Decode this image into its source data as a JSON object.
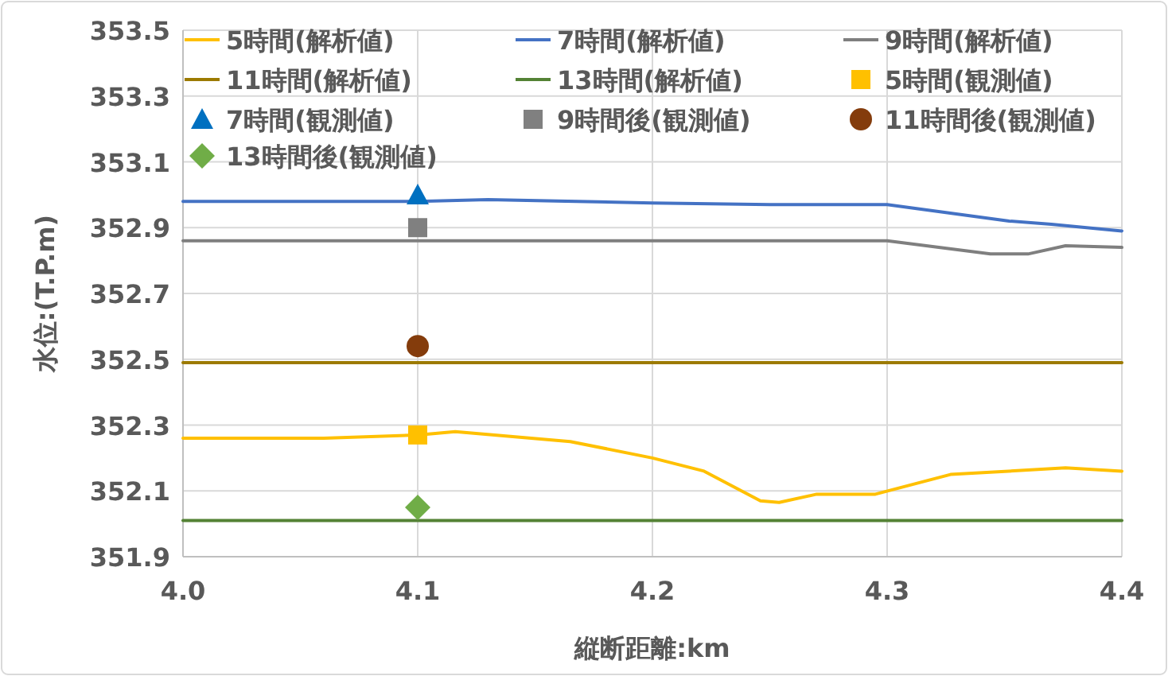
{
  "chart_data": {
    "type": "line",
    "xlabel": "縦断距離:km",
    "ylabel": "水位:(T.P.m)",
    "xlim": [
      4.0,
      4.4
    ],
    "xticks": [
      {
        "value": 4.0,
        "label": "4.0"
      },
      4.1,
      4.2,
      4.3,
      {
        "value": 4.4,
        "label": "4.4"
      }
    ],
    "ylim": [
      351.9,
      353.5
    ],
    "yticks": [
      351.9,
      352.1,
      352.3,
      352.5,
      352.7,
      352.9,
      353.1,
      353.3,
      353.5
    ],
    "grid": true,
    "legend": "top",
    "series": [
      {
        "name": "5時間(解析値)",
        "type": "line",
        "color": "#ffc000",
        "x": [
          4.0,
          4.06,
          4.1,
          4.116,
          4.165,
          4.2,
          4.222,
          4.246,
          4.254,
          4.27,
          4.295,
          4.327,
          4.376,
          4.4
        ],
        "values": [
          352.26,
          352.26,
          352.27,
          352.28,
          352.25,
          352.2,
          352.16,
          352.07,
          352.065,
          352.09,
          352.09,
          352.15,
          352.17,
          352.16
        ]
      },
      {
        "name": "7時間(解析値)",
        "type": "line",
        "color": "#4472c4",
        "x": [
          4.0,
          4.1,
          4.13,
          4.2,
          4.25,
          4.3,
          4.352,
          4.37,
          4.4
        ],
        "values": [
          352.98,
          352.98,
          352.985,
          352.975,
          352.97,
          352.97,
          352.92,
          352.91,
          352.89
        ]
      },
      {
        "name": "9時間(解析値)",
        "type": "line",
        "color": "#7f7f7f",
        "x": [
          4.0,
          4.1,
          4.2,
          4.3,
          4.344,
          4.36,
          4.376,
          4.4
        ],
        "values": [
          352.86,
          352.86,
          352.86,
          352.86,
          352.82,
          352.82,
          352.845,
          352.84
        ]
      },
      {
        "name": "11時間(解析値)",
        "type": "line",
        "color": "#9c7a00",
        "x": [
          4.0,
          4.4
        ],
        "values": [
          352.49,
          352.49
        ]
      },
      {
        "name": "13時間(解析値)",
        "type": "line",
        "color": "#548235",
        "x": [
          4.0,
          4.4
        ],
        "values": [
          352.01,
          352.01
        ]
      },
      {
        "name": "5時間(観測値)",
        "type": "scatter",
        "marker": "square",
        "color": "#ffc000",
        "x": [
          4.1
        ],
        "values": [
          352.27
        ]
      },
      {
        "name": "7時間(観測値)",
        "type": "scatter",
        "marker": "triangle",
        "color": "#0070c0",
        "x": [
          4.1
        ],
        "values": [
          353.0
        ]
      },
      {
        "name": "9時間後(観測値)",
        "type": "scatter",
        "marker": "square",
        "color": "#808080",
        "x": [
          4.1
        ],
        "values": [
          352.9
        ]
      },
      {
        "name": "11時間後(観測値)",
        "type": "scatter",
        "marker": "circle",
        "color": "#843c0c",
        "x": [
          4.1
        ],
        "values": [
          352.54
        ]
      },
      {
        "name": "13時間後(観測値)",
        "type": "scatter",
        "marker": "diamond",
        "color": "#70ad47",
        "x": [
          4.1
        ],
        "values": [
          352.05
        ]
      }
    ]
  }
}
